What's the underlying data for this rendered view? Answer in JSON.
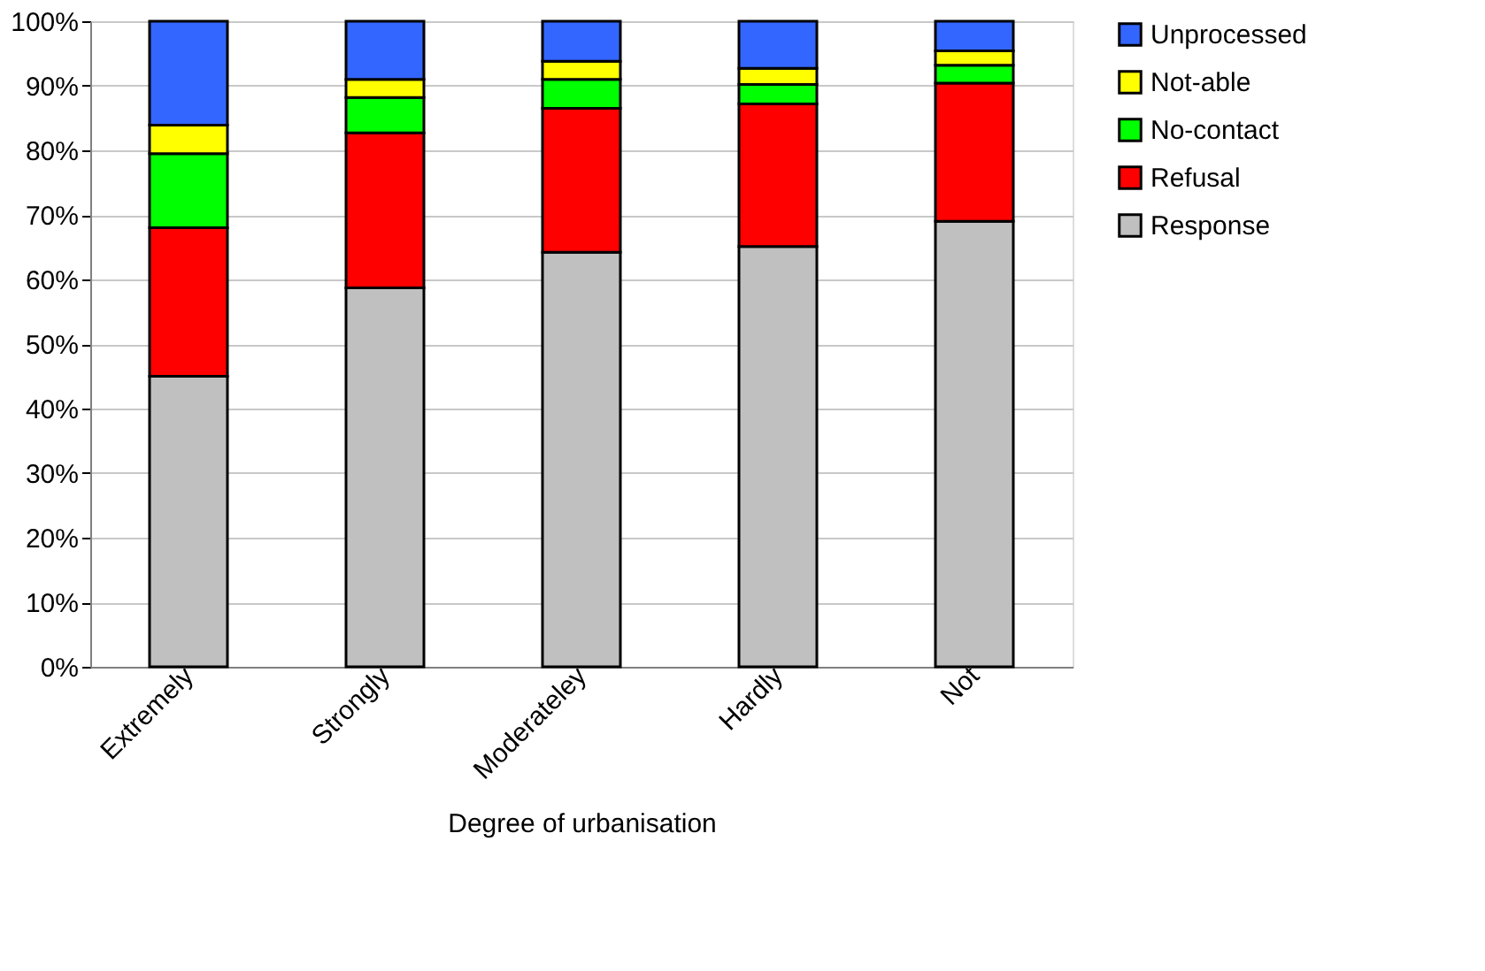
{
  "chart_data": {
    "type": "bar",
    "stacked": true,
    "xlabel": "Degree of urbanisation",
    "categories": [
      "Extremely",
      "Strongly",
      "Moderateley",
      "Hardly",
      "Not"
    ],
    "series": [
      {
        "name": "Response",
        "color": "#c0c0c0",
        "values": [
          45.0,
          58.7,
          64.2,
          65.1,
          69.0
        ]
      },
      {
        "name": "Refusal",
        "color": "#ff0000",
        "values": [
          23.0,
          24.0,
          22.3,
          22.1,
          21.4
        ]
      },
      {
        "name": "No-contact",
        "color": "#00ff00",
        "values": [
          11.5,
          5.5,
          4.5,
          3.0,
          2.8
        ]
      },
      {
        "name": "Not-able",
        "color": "#ffff00",
        "values": [
          4.4,
          2.8,
          2.8,
          2.5,
          2.2
        ]
      },
      {
        "name": "Unprocessed",
        "color": "#3366ff",
        "values": [
          16.1,
          9.0,
          6.2,
          7.3,
          4.6
        ]
      }
    ],
    "ylim": [
      0,
      100
    ],
    "yticks": [
      {
        "value": 0,
        "label": "0%"
      },
      {
        "value": 10,
        "label": "10%"
      },
      {
        "value": 20,
        "label": "20%"
      },
      {
        "value": 30,
        "label": "30%"
      },
      {
        "value": 40,
        "label": "40%"
      },
      {
        "value": 50,
        "label": "50%"
      },
      {
        "value": 60,
        "label": "60%"
      },
      {
        "value": 70,
        "label": "70%"
      },
      {
        "value": 80,
        "label": "80%"
      },
      {
        "value": 90,
        "label": "90%"
      },
      {
        "value": 100,
        "label": "100%"
      }
    ],
    "grid": "y",
    "legend": "top right"
  }
}
